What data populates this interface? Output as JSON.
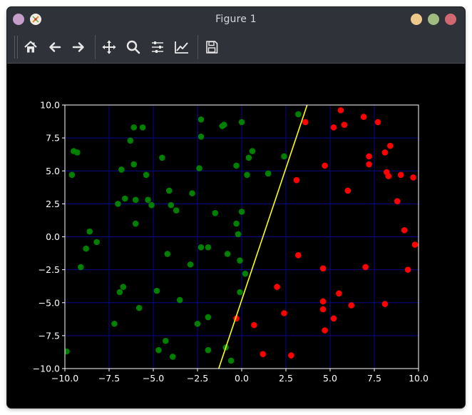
{
  "window": {
    "title": "Figure 1",
    "controls": [
      "menu-dot",
      "minimize-dot",
      "maximize-dot",
      "close-dot"
    ]
  },
  "toolbar": {
    "buttons": [
      {
        "name": "home-button",
        "icon": "home-icon"
      },
      {
        "name": "back-button",
        "icon": "arrow-left-icon"
      },
      {
        "name": "forward-button",
        "icon": "arrow-right-icon"
      },
      {
        "name": "pan-button",
        "icon": "move-icon"
      },
      {
        "name": "zoom-button",
        "icon": "search-icon"
      },
      {
        "name": "subplots-button",
        "icon": "sliders-icon"
      },
      {
        "name": "edit-axis-button",
        "icon": "line-chart-icon"
      },
      {
        "name": "save-button",
        "icon": "save-icon"
      }
    ]
  },
  "chart_data": {
    "type": "scatter",
    "xlim": [
      -10,
      10
    ],
    "ylim": [
      -10,
      10
    ],
    "x_ticks": [
      "−10.0",
      "−7.5",
      "−5.0",
      "−2.5",
      "0.0",
      "2.5",
      "5.0",
      "7.5",
      "10.0"
    ],
    "y_ticks": [
      "10.0",
      "7.5",
      "5.0",
      "2.5",
      "0.0",
      "−2.5",
      "−5.0",
      "−7.5",
      "−10.0"
    ],
    "grid": true,
    "grid_color": "#0a0a8c",
    "background": "#000000",
    "axes_edge_color": "#ffffff",
    "series": [
      {
        "color": "#008000",
        "points": [
          [
            -9.9,
            -8.7
          ],
          [
            -9.6,
            4.7
          ],
          [
            -9.5,
            6.5
          ],
          [
            -9.3,
            6.4
          ],
          [
            -9.1,
            -2.3
          ],
          [
            -8.8,
            -0.9
          ],
          [
            -8.6,
            0.4
          ],
          [
            -8.2,
            -0.4
          ],
          [
            -7.2,
            -6.6
          ],
          [
            -7.0,
            2.5
          ],
          [
            -6.9,
            -4.2
          ],
          [
            -6.8,
            5.1
          ],
          [
            -6.7,
            -3.8
          ],
          [
            -6.6,
            2.9
          ],
          [
            -6.3,
            7.3
          ],
          [
            -6.1,
            5.5
          ],
          [
            -6.1,
            8.3
          ],
          [
            -6.0,
            2.8
          ],
          [
            -6.0,
            1.0
          ],
          [
            -5.8,
            -5.4
          ],
          [
            -5.6,
            8.3
          ],
          [
            -5.4,
            4.7
          ],
          [
            -5.3,
            2.8
          ],
          [
            -5.1,
            2.4
          ],
          [
            -4.8,
            -4.1
          ],
          [
            -4.7,
            -8.6
          ],
          [
            -4.5,
            6.0
          ],
          [
            -4.3,
            -7.9
          ],
          [
            -4.2,
            -1.3
          ],
          [
            -4.1,
            3.5
          ],
          [
            -4.0,
            2.4
          ],
          [
            -3.9,
            -9.1
          ],
          [
            -3.7,
            2.0
          ],
          [
            -3.5,
            -4.8
          ],
          [
            -2.9,
            -2.1
          ],
          [
            -2.8,
            3.3
          ],
          [
            -2.5,
            -6.6
          ],
          [
            -2.4,
            5.2
          ],
          [
            -2.3,
            8.9
          ],
          [
            -2.3,
            7.6
          ],
          [
            -2.3,
            -0.8
          ],
          [
            -1.9,
            -0.8
          ],
          [
            -1.9,
            -6.1
          ],
          [
            -1.9,
            -8.6
          ],
          [
            -1.5,
            1.8
          ],
          [
            -1.1,
            8.4
          ],
          [
            -1.0,
            8.5
          ],
          [
            -0.9,
            -8.4
          ],
          [
            -0.8,
            -1.3
          ],
          [
            -0.6,
            -9.4
          ],
          [
            -0.3,
            1.0
          ],
          [
            -0.3,
            5.4
          ],
          [
            -0.2,
            0.2
          ],
          [
            -0.1,
            -1.8
          ],
          [
            -0.1,
            -4.2
          ],
          [
            0.0,
            8.7
          ],
          [
            0.0,
            1.9
          ],
          [
            0.2,
            -2.8
          ],
          [
            0.3,
            4.7
          ],
          [
            0.4,
            6.0
          ],
          [
            0.6,
            6.5
          ],
          [
            1.5,
            4.8
          ],
          [
            2.4,
            6.1
          ],
          [
            3.2,
            9.3
          ]
        ]
      },
      {
        "color": "#ff0000",
        "points": [
          [
            -0.3,
            -6.2
          ],
          [
            0.7,
            -6.7
          ],
          [
            1.2,
            -8.9
          ],
          [
            2.0,
            -3.8
          ],
          [
            2.4,
            -5.8
          ],
          [
            2.8,
            -9.0
          ],
          [
            3.1,
            4.3
          ],
          [
            3.2,
            -1.4
          ],
          [
            3.6,
            8.7
          ],
          [
            4.6,
            -2.4
          ],
          [
            4.6,
            -4.9
          ],
          [
            4.6,
            -5.5
          ],
          [
            4.7,
            -7.1
          ],
          [
            4.7,
            5.4
          ],
          [
            5.2,
            -6.2
          ],
          [
            5.2,
            8.3
          ],
          [
            5.5,
            -4.3
          ],
          [
            5.6,
            9.6
          ],
          [
            5.8,
            8.5
          ],
          [
            6.0,
            3.5
          ],
          [
            6.2,
            -5.2
          ],
          [
            6.9,
            9.1
          ],
          [
            7.0,
            -2.3
          ],
          [
            7.2,
            5.5
          ],
          [
            7.2,
            6.1
          ],
          [
            7.7,
            8.7
          ],
          [
            8.1,
            -5.1
          ],
          [
            8.1,
            6.4
          ],
          [
            8.2,
            4.9
          ],
          [
            8.3,
            4.6
          ],
          [
            8.4,
            6.9
          ],
          [
            8.8,
            2.7
          ],
          [
            9.0,
            4.7
          ],
          [
            9.2,
            0.5
          ],
          [
            9.4,
            -2.5
          ],
          [
            9.7,
            4.5
          ],
          [
            9.8,
            -0.6
          ]
        ]
      }
    ],
    "decision_line": {
      "color": "#ffff00",
      "points": [
        [
          -1.3,
          -10.0
        ],
        [
          3.7,
          10.0
        ]
      ]
    }
  }
}
